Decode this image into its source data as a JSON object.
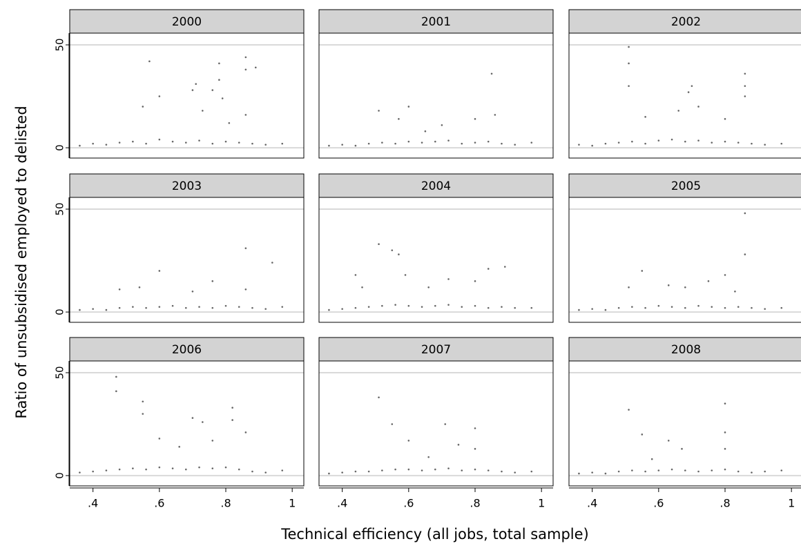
{
  "xlabel": "Technical efficiency (all jobs, total sample)",
  "ylabel": "Ratio of unsubsidised employed to delisted",
  "chart_data": [
    {
      "type": "scatter",
      "title": "2000",
      "color": "#666666",
      "xlim": [
        0.33,
        1.035
      ],
      "ylim": [
        -5,
        55.7
      ],
      "yticks": [
        0,
        50
      ],
      "x": [
        0.57,
        0.6,
        0.55,
        0.7,
        0.71,
        0.76,
        0.78,
        0.78,
        0.79,
        0.86,
        0.86,
        0.89,
        0.86,
        0.73,
        0.81,
        0.36,
        0.4,
        0.44,
        0.48,
        0.52,
        0.56,
        0.6,
        0.64,
        0.68,
        0.72,
        0.76,
        0.8,
        0.84,
        0.88,
        0.92,
        0.97
      ],
      "y": [
        42,
        25,
        20,
        28,
        31,
        28,
        41,
        33,
        24,
        44,
        38,
        39,
        16,
        18,
        12,
        1,
        2,
        1.5,
        2.5,
        3,
        2,
        4,
        3,
        2.5,
        3.5,
        2,
        3,
        2.5,
        2,
        1.5,
        2
      ]
    },
    {
      "type": "scatter",
      "title": "2001",
      "color": "#666666",
      "xlim": [
        0.33,
        1.035
      ],
      "ylim": [
        -5,
        55.7
      ],
      "yticks": [
        0,
        50
      ],
      "x": [
        0.85,
        0.51,
        0.6,
        0.57,
        0.7,
        0.8,
        0.86,
        0.65,
        0.36,
        0.4,
        0.44,
        0.48,
        0.52,
        0.56,
        0.6,
        0.64,
        0.68,
        0.72,
        0.76,
        0.8,
        0.84,
        0.88,
        0.92,
        0.97
      ],
      "y": [
        36,
        18,
        20,
        14,
        11,
        14,
        16,
        8,
        1,
        1.5,
        1,
        2,
        2.5,
        2,
        3,
        2.5,
        3,
        3.5,
        2,
        2.5,
        3,
        2,
        1.5,
        2.5
      ]
    },
    {
      "type": "scatter",
      "title": "2002",
      "color": "#666666",
      "xlim": [
        0.33,
        1.035
      ],
      "ylim": [
        -5,
        55.7
      ],
      "yticks": [
        0,
        50
      ],
      "x": [
        0.51,
        0.51,
        0.51,
        0.86,
        0.86,
        0.86,
        0.69,
        0.7,
        0.72,
        0.66,
        0.56,
        0.8,
        0.36,
        0.4,
        0.44,
        0.48,
        0.52,
        0.56,
        0.6,
        0.64,
        0.68,
        0.72,
        0.76,
        0.8,
        0.84,
        0.88,
        0.92,
        0.97
      ],
      "y": [
        49,
        41,
        30,
        36,
        30,
        25,
        27,
        30,
        20,
        18,
        15,
        14,
        1.5,
        1,
        2,
        2.5,
        3,
        2,
        3.5,
        4,
        3,
        3.5,
        2.5,
        3,
        2.5,
        2,
        1.5,
        2
      ]
    },
    {
      "type": "scatter",
      "title": "2003",
      "color": "#666666",
      "xlim": [
        0.33,
        1.035
      ],
      "ylim": [
        -5,
        55.7
      ],
      "yticks": [
        0,
        50
      ],
      "x": [
        0.86,
        0.94,
        0.6,
        0.76,
        0.86,
        0.54,
        0.48,
        0.7,
        0.36,
        0.4,
        0.44,
        0.48,
        0.52,
        0.56,
        0.6,
        0.64,
        0.68,
        0.72,
        0.76,
        0.8,
        0.84,
        0.88,
        0.92,
        0.97
      ],
      "y": [
        31,
        24,
        20,
        15,
        11,
        12,
        11,
        10,
        1,
        1.5,
        1,
        2,
        2.5,
        2,
        2.5,
        3,
        2,
        2.5,
        2,
        3,
        2.5,
        2,
        1.5,
        2.5
      ]
    },
    {
      "type": "scatter",
      "title": "2004",
      "color": "#666666",
      "xlim": [
        0.33,
        1.035
      ],
      "ylim": [
        -5,
        55.7
      ],
      "yticks": [
        0,
        50
      ],
      "x": [
        0.51,
        0.55,
        0.57,
        0.59,
        0.44,
        0.46,
        0.84,
        0.89,
        0.8,
        0.72,
        0.66,
        0.36,
        0.4,
        0.44,
        0.48,
        0.52,
        0.56,
        0.6,
        0.64,
        0.68,
        0.72,
        0.76,
        0.8,
        0.84,
        0.88,
        0.92,
        0.97
      ],
      "y": [
        33,
        30,
        28,
        18,
        18,
        12,
        21,
        22,
        15,
        16,
        12,
        1,
        1.5,
        2,
        2.5,
        3,
        3.5,
        3,
        2.5,
        3,
        3.5,
        2.5,
        3,
        2,
        2.5,
        2,
        2
      ]
    },
    {
      "type": "scatter",
      "title": "2005",
      "color": "#666666",
      "xlim": [
        0.33,
        1.035
      ],
      "ylim": [
        -5,
        55.7
      ],
      "yticks": [
        0,
        50
      ],
      "x": [
        0.86,
        0.86,
        0.55,
        0.51,
        0.8,
        0.63,
        0.75,
        0.68,
        0.83,
        0.36,
        0.4,
        0.44,
        0.48,
        0.52,
        0.56,
        0.6,
        0.64,
        0.68,
        0.72,
        0.76,
        0.8,
        0.84,
        0.88,
        0.92,
        0.97
      ],
      "y": [
        48,
        28,
        20,
        12,
        18,
        13,
        15,
        12,
        10,
        1,
        1.5,
        1,
        2,
        2.5,
        2,
        3,
        2.5,
        2,
        3,
        2.5,
        2,
        2.5,
        2,
        1.5,
        2
      ]
    },
    {
      "type": "scatter",
      "title": "2006",
      "color": "#666666",
      "xlim": [
        0.33,
        1.035
      ],
      "ylim": [
        -5,
        55.7
      ],
      "yticks": [
        0,
        50
      ],
      "xticks": [
        {
          "value": 0.4,
          "label": ".4"
        },
        {
          "value": 0.6,
          "label": ".6"
        },
        {
          "value": 0.8,
          "label": ".8"
        },
        1
      ],
      "x": [
        0.47,
        0.47,
        0.55,
        0.55,
        0.6,
        0.7,
        0.73,
        0.82,
        0.82,
        0.86,
        0.76,
        0.66,
        0.36,
        0.4,
        0.44,
        0.48,
        0.52,
        0.56,
        0.6,
        0.64,
        0.68,
        0.72,
        0.76,
        0.8,
        0.84,
        0.88,
        0.92,
        0.97
      ],
      "y": [
        48,
        41,
        36,
        30,
        18,
        28,
        26,
        33,
        27,
        21,
        17,
        14,
        1.5,
        2,
        2.5,
        3,
        3.5,
        3,
        4,
        3.5,
        3,
        4,
        3.5,
        4,
        3,
        2,
        1.5,
        2.5
      ]
    },
    {
      "type": "scatter",
      "title": "2007",
      "color": "#666666",
      "xlim": [
        0.33,
        1.035
      ],
      "ylim": [
        -5,
        55.7
      ],
      "yticks": [
        0,
        50
      ],
      "xticks": [
        {
          "value": 0.4,
          "label": ".4"
        },
        {
          "value": 0.6,
          "label": ".6"
        },
        {
          "value": 0.8,
          "label": ".8"
        },
        1
      ],
      "x": [
        0.51,
        0.55,
        0.71,
        0.8,
        0.8,
        0.6,
        0.75,
        0.66,
        0.36,
        0.4,
        0.44,
        0.48,
        0.52,
        0.56,
        0.6,
        0.64,
        0.68,
        0.72,
        0.76,
        0.8,
        0.84,
        0.88,
        0.92,
        0.97
      ],
      "y": [
        38,
        25,
        25,
        23,
        13,
        17,
        15,
        9,
        1,
        1.5,
        2,
        2,
        2.5,
        3,
        3,
        2.5,
        3,
        3.5,
        2.5,
        3,
        2.5,
        2,
        1.5,
        2
      ]
    },
    {
      "type": "scatter",
      "title": "2008",
      "color": "#666666",
      "xlim": [
        0.33,
        1.035
      ],
      "ylim": [
        -5,
        55.7
      ],
      "yticks": [
        0,
        50
      ],
      "xticks": [
        {
          "value": 0.4,
          "label": ".4"
        },
        {
          "value": 0.6,
          "label": ".6"
        },
        {
          "value": 0.8,
          "label": ".8"
        },
        1
      ],
      "x": [
        0.51,
        0.55,
        0.63,
        0.67,
        0.8,
        0.8,
        0.8,
        0.58,
        0.36,
        0.4,
        0.44,
        0.48,
        0.52,
        0.56,
        0.6,
        0.64,
        0.68,
        0.72,
        0.76,
        0.8,
        0.84,
        0.88,
        0.92,
        0.97
      ],
      "y": [
        32,
        20,
        17,
        13,
        35,
        21,
        13,
        8,
        1,
        1.5,
        1,
        2,
        2.5,
        2,
        2.5,
        3,
        2.5,
        2,
        2.5,
        3,
        2,
        1.5,
        2,
        2.5
      ]
    }
  ]
}
